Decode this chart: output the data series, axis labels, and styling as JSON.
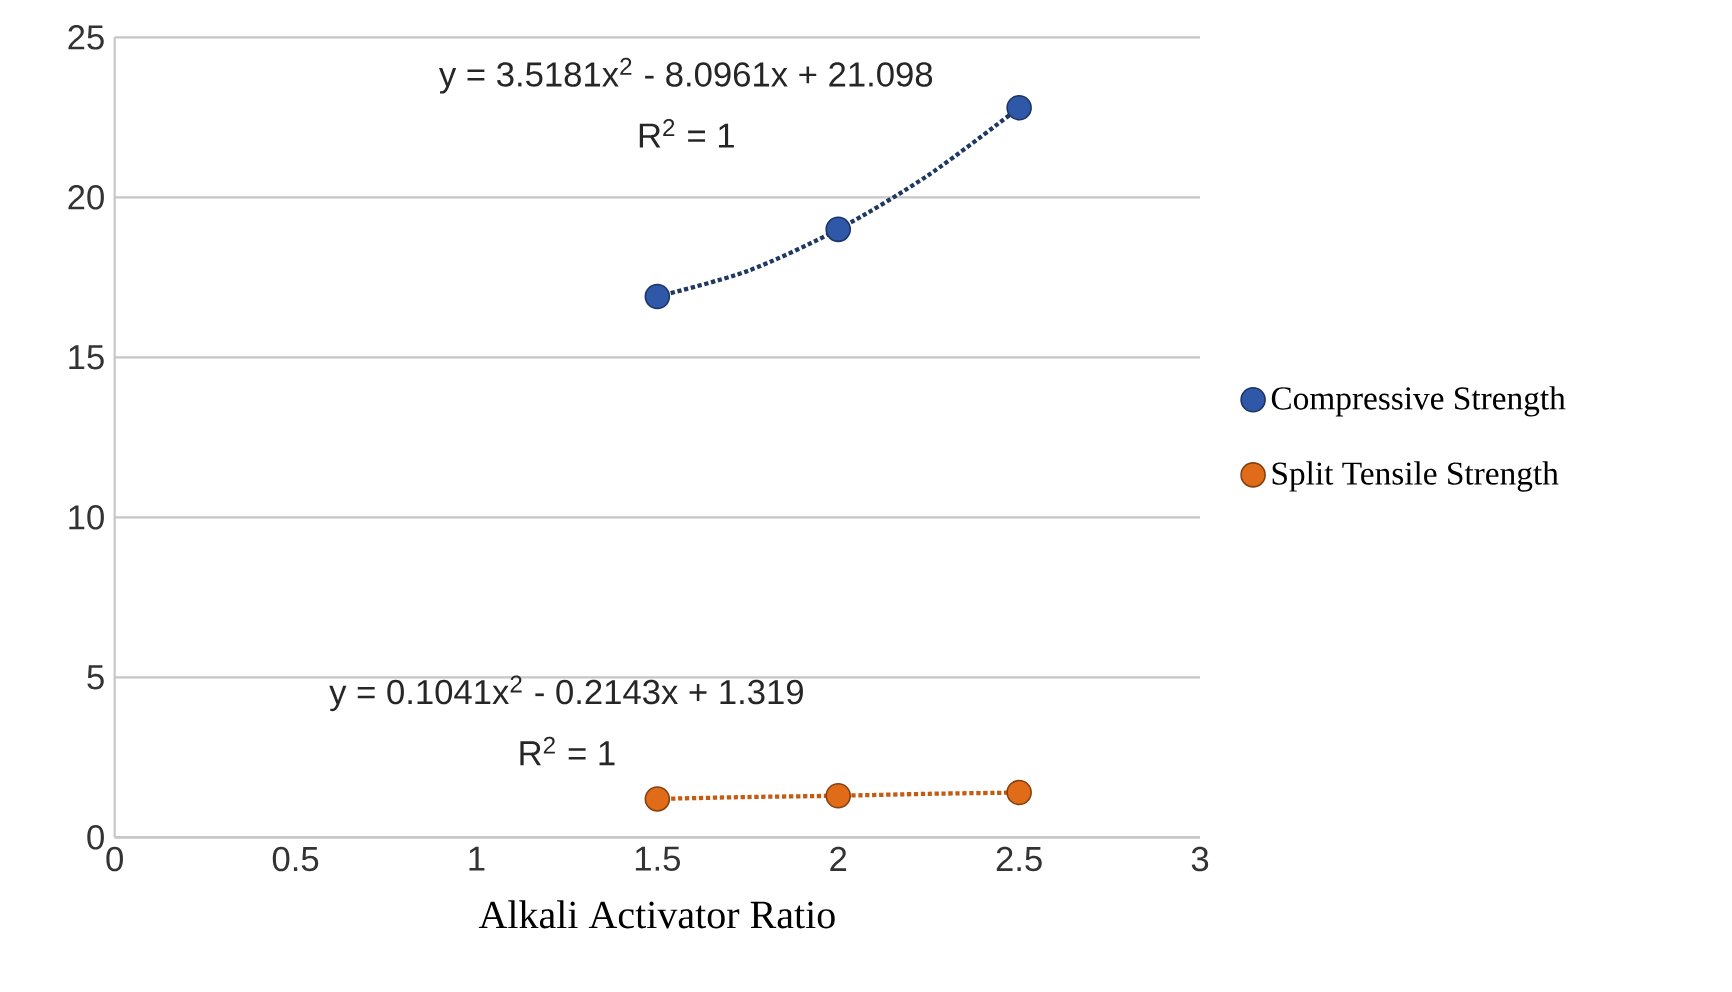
{
  "chart_data": {
    "type": "scatter",
    "xlabel": "Alkali Activator Ratio",
    "series": [
      {
        "name": "Compressive Strength",
        "color": "#2f58a8",
        "x": [
          1.5,
          2,
          2.5
        ],
        "values": [
          16.9,
          19.0,
          22.8
        ],
        "marker": "circle"
      },
      {
        "name": "Split Tensile Strength",
        "color": "#e06c1a",
        "x": [
          1.5,
          2,
          2.5
        ],
        "values": [
          1.2,
          1.3,
          1.4
        ],
        "marker": "circle"
      },
      {
        "type": "line",
        "color": "#1f3864",
        "x": [
          1.5,
          1.75,
          2,
          2.25,
          2.5
        ],
        "values": [
          16.9,
          17.7,
          19.0,
          20.7,
          22.8
        ],
        "line_style": "dotted",
        "marker": "none"
      },
      {
        "type": "line",
        "color": "#c55a11",
        "x": [
          1.5,
          1.75,
          2,
          2.25,
          2.5
        ],
        "values": [
          1.2,
          1.26,
          1.3,
          1.36,
          1.4
        ],
        "line_style": "dotted",
        "marker": "none"
      }
    ],
    "annotations": [
      "y = 3.5181x$^{2}$ - 8.0961x + 21.098",
      "R$^{2}$ = 1",
      "y = 0.1041x$^{2}$ - 0.2143x + 1.319",
      "R$^{2}$ = 1"
    ],
    "xlim": [
      0,
      3
    ],
    "xticks": [
      0,
      0.5,
      1,
      1.5,
      2,
      2.5,
      3
    ],
    "ylim": [
      0,
      25
    ],
    "yticks": [
      0,
      5,
      10,
      15,
      20,
      25
    ],
    "grid": "y",
    "legend": "right"
  }
}
